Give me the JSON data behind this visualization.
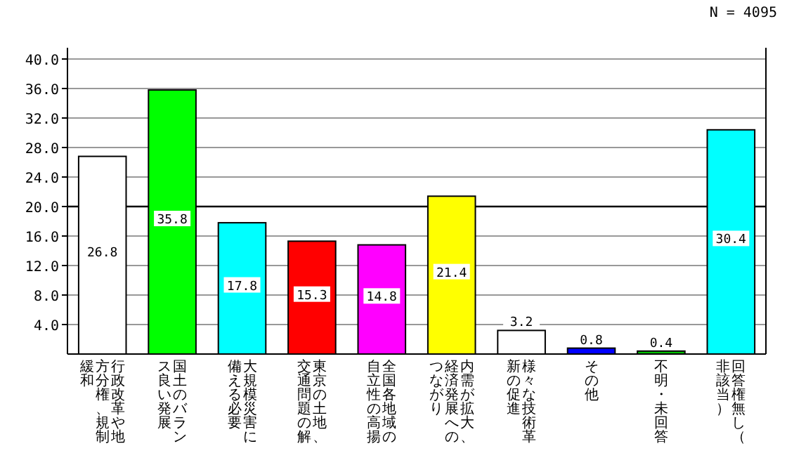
{
  "chart_data": {
    "type": "bar",
    "categories": [
      "行政改革や地方分権、規制緩和",
      "国土のバランス良い発展",
      "大規模災害に備える必要",
      "東京の土地、交通問題の解",
      "全国各地域の自立性の高揚",
      "内需が拡大、経済発展へのつながり",
      "様々な技術革新の促進",
      "その他",
      "不明・未回答",
      "回答権無し（非該当）"
    ],
    "values": [
      26.8,
      35.8,
      17.8,
      15.3,
      14.8,
      21.4,
      3.2,
      0.8,
      0.4,
      30.4
    ],
    "colors": [
      "#ffffff",
      "#00ff00",
      "#00ffff",
      "#ff0000",
      "#ff00ff",
      "#ffff00",
      "#ffffff",
      "#0000ff",
      "#00c000",
      "#00ffff"
    ],
    "ylim": [
      0,
      40
    ],
    "yticks": [
      {
        "value": 4,
        "label": "4.0"
      },
      {
        "value": 8,
        "label": "8.0"
      },
      {
        "value": 12,
        "label": "12.0"
      },
      {
        "value": 16,
        "label": "16.0"
      },
      {
        "value": 20,
        "label": "20.0"
      },
      {
        "value": 24,
        "label": "24.0"
      },
      {
        "value": 28,
        "label": "28.0"
      },
      {
        "value": 32,
        "label": "32.0"
      },
      {
        "value": 36,
        "label": "36.0"
      },
      {
        "value": 40,
        "label": "40.0"
      }
    ],
    "grid": "y",
    "ref_lines": [
      {
        "axis": "y",
        "value": 20,
        "color": "#000000"
      }
    ],
    "data_labels": true,
    "annotations": [
      "N = 4095"
    ]
  }
}
